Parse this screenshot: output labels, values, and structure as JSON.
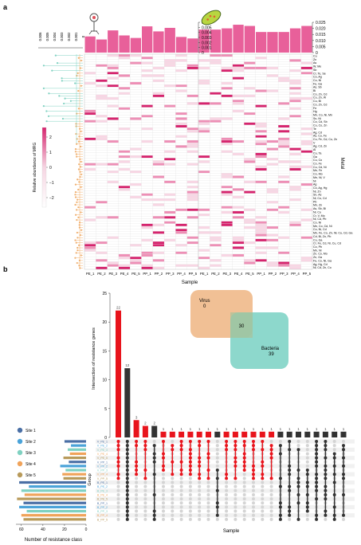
{
  "panel_a": {
    "label": "a",
    "sample_axis_title": "Sample",
    "metal_axis_title": "Metal",
    "legend_title": "Relative abundance of MRG",
    "legend_ticks": [
      "2",
      "1",
      "0",
      "−1",
      "−2"
    ],
    "virus_icon": "virus-icon",
    "bacteria_icon": "bacteria-icon",
    "heat_low_color": "#ffffff",
    "heat_high_color": "#d6246e",
    "bar_color": "#e8609a"
  },
  "panel_b": {
    "label": "b",
    "venn": {
      "virus_label": "Virus",
      "virus_only": "0",
      "shared": "30",
      "bacteria_label": "Bacteria",
      "bacteria_only": "39",
      "virus_color": "#f0b98a",
      "bacteria_color": "#79d1c3"
    },
    "upset_ylabel": "Intersection of resistance genes",
    "upset_xlabel": "Sample",
    "group_label": "Group",
    "set_size_xlabel": "Number of resistance class",
    "set_size_ticks": [
      "60",
      "40",
      "20",
      "0"
    ],
    "site_legend": [
      {
        "label": "Site 1",
        "color": "#4a6fa5"
      },
      {
        "label": "Site 2",
        "color": "#4aa3d9"
      },
      {
        "label": "Site 3",
        "color": "#7fd1c1"
      },
      {
        "label": "Site 4",
        "color": "#f0a35a"
      },
      {
        "label": "Site 5",
        "color": "#b89a5a"
      }
    ]
  },
  "chart_data": [
    {
      "type": "heatmap",
      "title": "",
      "subtitle": "Virus",
      "xlabel": "Sample",
      "ylabel": "Metal",
      "x": [
        "PE_1",
        "PE_2",
        "PE_3",
        "PE_4",
        "PE_5",
        "PP_1",
        "PP_2",
        "PP_3",
        "PP_4",
        "PP_5"
      ],
      "top_bar": {
        "values": [
          0.0032,
          0.0026,
          0.0044,
          0.0034,
          0.0029,
          0.0052,
          0.0042,
          0.0049,
          0.0031,
          0.0028
        ],
        "ylim": [
          0,
          0.006
        ],
        "ticks": [
          "0.006",
          "0.005",
          "0.004",
          "0.003",
          "0.002",
          "0.001",
          "0"
        ]
      },
      "rows": 85,
      "seed": 7
    },
    {
      "type": "heatmap",
      "title": "",
      "subtitle": "Bacteria",
      "xlabel": "Sample",
      "ylabel": "Metal",
      "x": [
        "PE_1",
        "PE_2",
        "PE_3",
        "PE_4",
        "PE_5",
        "PP_1",
        "PP_2",
        "PP_3",
        "PP_4",
        "PP_5"
      ],
      "top_bar": {
        "values": [
          0.019,
          0.019,
          0.02,
          0.023,
          0.022,
          0.017,
          0.017,
          0.017,
          0.02,
          0.022
        ],
        "ylim": [
          0,
          0.025
        ],
        "ticks": [
          "0.025",
          "0.020",
          "0.015",
          "0.010",
          "0.005",
          "0"
        ]
      },
      "metal_labels": [
        "Cu",
        "Zn",
        "As",
        "W, Mo",
        "Sb",
        "Cr, Te, Se",
        "Co, Ag",
        "Co, Ni",
        "Fe, Ga",
        "As, Sb",
        "Bi",
        "Co, Zn, Cd",
        "Cu, Zn, W",
        "Cu, Bi",
        "Co, Zn, Cd",
        "Fe",
        "Hg",
        "Mn, Co, Ni, Mn",
        "Sn, Ni",
        "Co, Cd, Sb",
        "Cu, Co, Zn",
        "Te",
        "Ag, Cd",
        "As, Cu, Fe",
        "Cu, Fe, Cd, Cu, Zn",
        "V",
        "Ag, Cd, Zn",
        "Al",
        "Cu, Ta",
        "Ga",
        "Cu, Co",
        "Co, Fe",
        "Cu, Cd, Ni",
        "Mn, Fe",
        "Co, Mo",
        "Mn, Ni, V",
        "Ni",
        "Ag",
        "Co, Ag, Hg",
        "Ni, Zn",
        "Sn, As",
        "Ni, Co, Cd",
        "Pb",
        "Mn, Zn",
        "As, Sb, Bi",
        "Ni, Cu",
        "Cr, V, Mo",
        "Ni, Cd, Pb",
        "Co, Ni",
        "Mn, Co, Cd, Ni",
        "Co, Ni, Cd",
        "Mn, Fe, Co, Zn, Ni, Cu, Cd, Ga",
        "Cd, Bi, Zn, Pb",
        "Cu, Ga",
        "Cr, Fe, Cd, Ni, Cu, Cd",
        "Co, Pb",
        "Mn, Ni",
        "Zn, Co, Mo",
        "Zn, Ga",
        "Fe, Co, Ni, Ga",
        "Ag, Hg, Cd",
        "Ni, Cd, Zn, Co"
      ],
      "rows": 85,
      "seed": 13
    },
    {
      "type": "bar",
      "title": "",
      "subtitle": "UpSet intersections",
      "ylabel": "Intersection of resistance genes",
      "xlabel": "Sample",
      "values": [
        22,
        12,
        3,
        2,
        2,
        1,
        1,
        1,
        1,
        1,
        1,
        1,
        1,
        1,
        1,
        1,
        1,
        1,
        1,
        1,
        1,
        1,
        1,
        1,
        1,
        1
      ],
      "value_labels": [
        "22",
        "12",
        "3",
        "2",
        "2",
        "1",
        "1",
        "1",
        "1",
        "1",
        "1",
        "1",
        "1",
        "1",
        "1",
        "1",
        "1",
        "1",
        "1",
        "1",
        "1",
        "1",
        "1",
        "1",
        "1",
        "1"
      ],
      "colors": [
        "red",
        "dark",
        "red",
        "red",
        "dark",
        "red",
        "red",
        "red",
        "red",
        "red",
        "red",
        "dark",
        "red",
        "red",
        "red",
        "red",
        "red",
        "red",
        "dark",
        "dark",
        "dark",
        "dark",
        "dark",
        "dark",
        "dark",
        "dark"
      ],
      "ylim": [
        0,
        25
      ],
      "yticks": [
        "25",
        "20",
        "15",
        "10",
        "5",
        "0"
      ]
    },
    {
      "type": "bar",
      "title": "",
      "subtitle": "Set sizes",
      "xlabel": "Number of resistance class",
      "sets": [
        "B_PP_5",
        "B_PP_4",
        "B_PP_3",
        "B_PP_2",
        "B_PP_1",
        "B_PE_5",
        "B_PE_4",
        "B_PE_3",
        "B_PE_2",
        "B_PE_1",
        "V_PP_5",
        "V_PP_4",
        "V_PP_3",
        "V_PP_2",
        "V_PP_1",
        "V_PE_5",
        "V_PE_4",
        "V_PE_3",
        "V_PE_2",
        "V_PE_1"
      ],
      "values": [
        58,
        60,
        55,
        62,
        58,
        64,
        57,
        60,
        53,
        62,
        21,
        22,
        19,
        24,
        16,
        21,
        15,
        17,
        14,
        20
      ],
      "set_colors": [
        "#b89a5a",
        "#f0a35a",
        "#7fd1c1",
        "#4aa3d9",
        "#4a6fa5",
        "#b89a5a",
        "#f0a35a",
        "#7fd1c1",
        "#4aa3d9",
        "#4a6fa5",
        "#b89a5a",
        "#f0a35a",
        "#7fd1c1",
        "#4aa3d9",
        "#4a6fa5",
        "#b89a5a",
        "#f0a35a",
        "#7fd1c1",
        "#4aa3d9",
        "#4a6fa5"
      ],
      "xlim": [
        0,
        65
      ]
    }
  ]
}
